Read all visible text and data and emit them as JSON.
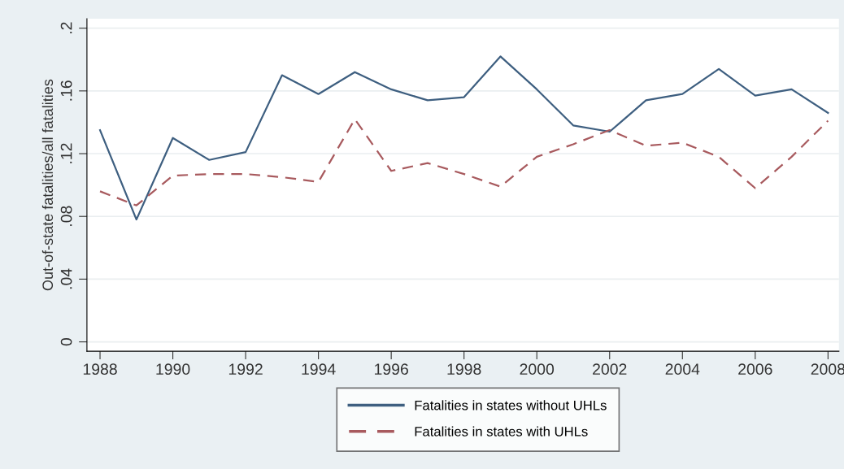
{
  "chart_data": {
    "type": "line",
    "ylabel": "Out-of-state fatalities/all fatalities",
    "x": [
      1988,
      1989,
      1990,
      1991,
      1992,
      1993,
      1994,
      1995,
      1996,
      1997,
      1998,
      1999,
      2000,
      2001,
      2002,
      2003,
      2004,
      2005,
      2006,
      2007,
      2008
    ],
    "series": [
      {
        "name": "Fatalities in states without UHLs",
        "color": "#3e5f80",
        "line_style": "solid",
        "values": [
          0.135,
          0.078,
          0.13,
          0.116,
          0.121,
          0.17,
          0.158,
          0.172,
          0.161,
          0.154,
          0.156,
          0.182,
          0.161,
          0.138,
          0.134,
          0.154,
          0.158,
          0.174,
          0.157,
          0.161,
          0.146
        ]
      },
      {
        "name": "Fatalities in states with UHLs",
        "color": "#a85a5e",
        "line_style": "dashed",
        "values": [
          0.096,
          0.087,
          0.106,
          0.107,
          0.107,
          0.105,
          0.102,
          0.142,
          0.109,
          0.114,
          0.107,
          0.099,
          0.118,
          0.126,
          0.135,
          0.125,
          0.127,
          0.118,
          0.098,
          0.118,
          0.141
        ]
      }
    ],
    "xlim": [
      1987.64,
      2008.3
    ],
    "xticks": [
      1988,
      1990,
      1992,
      1994,
      1996,
      1998,
      2000,
      2002,
      2004,
      2006,
      2008
    ],
    "ylim": [
      -0.006,
      0.206
    ],
    "yticks": [
      {
        "value": 0,
        "label": "0"
      },
      {
        "value": 0.04,
        "label": ".04"
      },
      {
        "value": 0.08,
        "label": ".08"
      },
      {
        "value": 0.12,
        "label": ".12"
      },
      {
        "value": 0.16,
        "label": ".16"
      },
      {
        "value": 0.2,
        "label": ".2"
      }
    ],
    "grid": "y",
    "legend": "bottom"
  }
}
